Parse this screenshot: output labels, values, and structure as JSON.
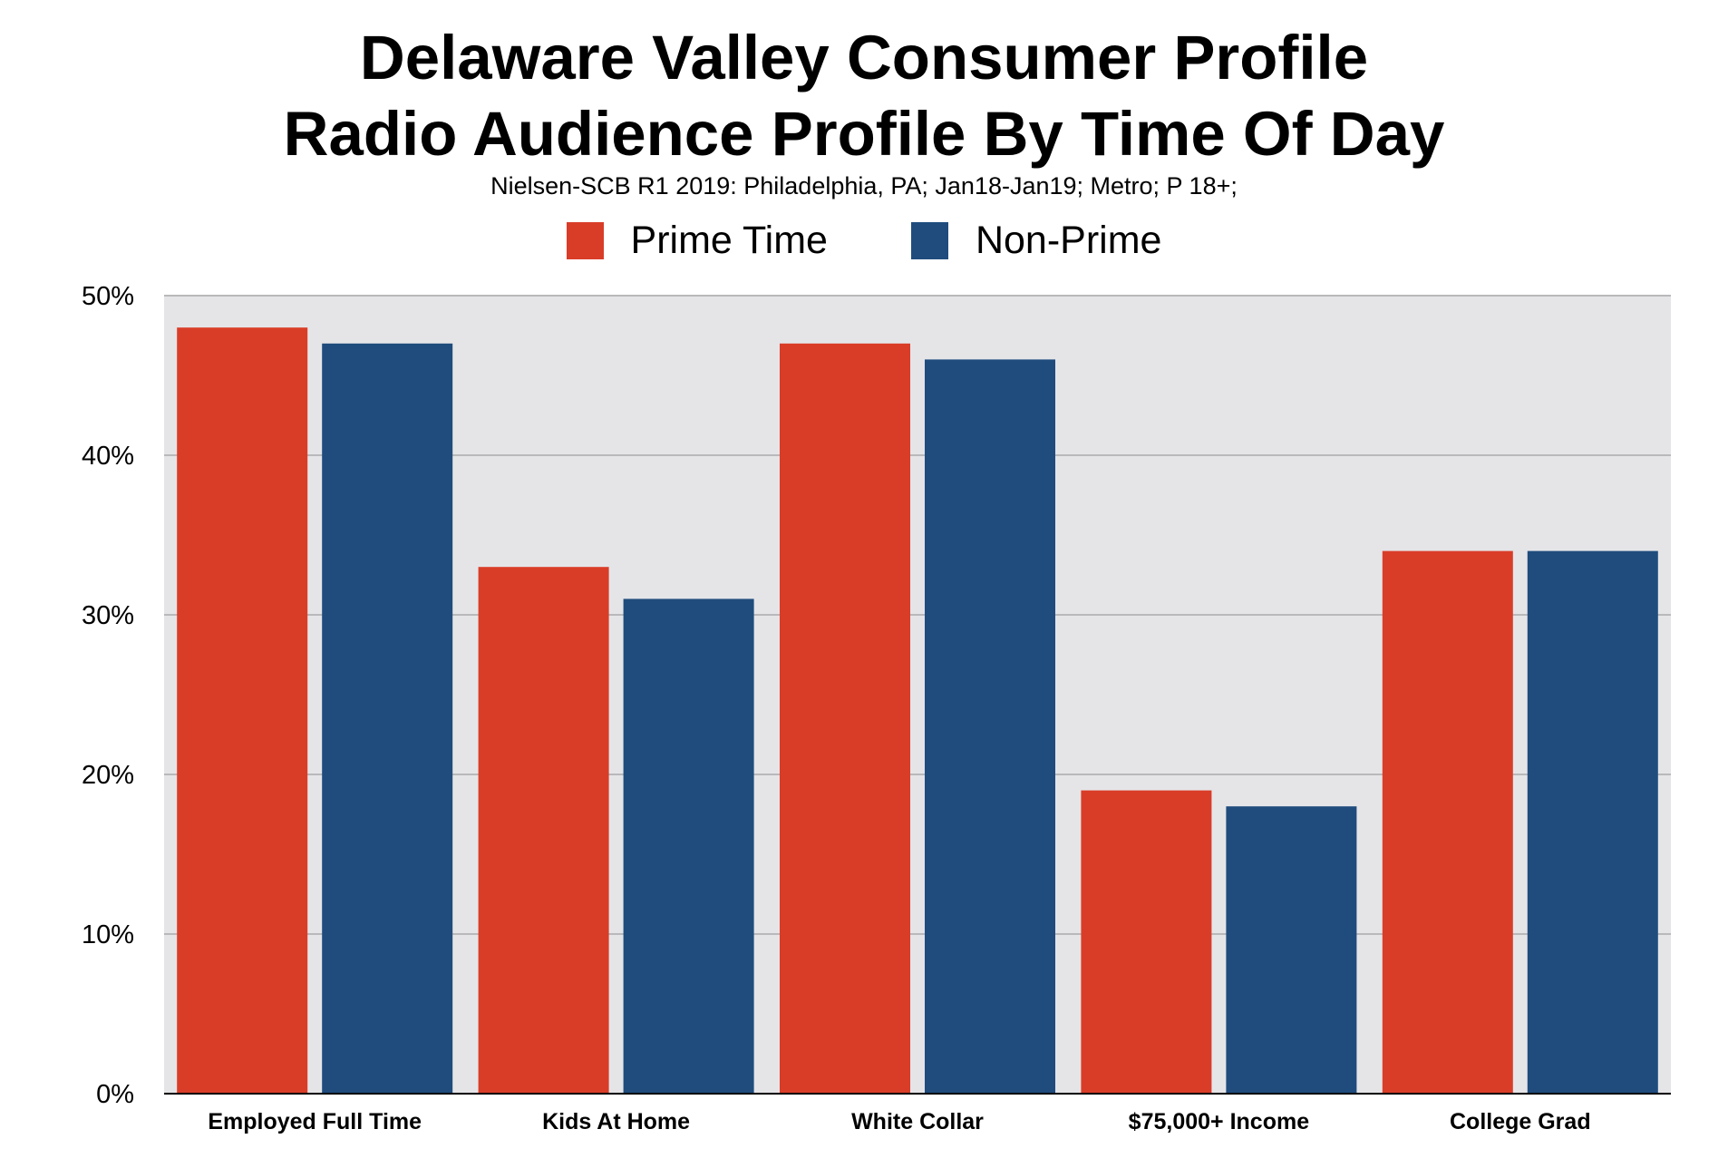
{
  "chart_data": {
    "type": "bar",
    "title": [
      "Delaware Valley Consumer Profile",
      "Radio Audience Profile By Time Of Day"
    ],
    "subtitle": "Nielsen-SCB R1 2019: Philadelphia, PA; Jan18-Jan19; Metro; P 18+;",
    "categories": [
      "Employed Full Time",
      "Kids At Home",
      "White Collar",
      "$75,000+ Income",
      "College Grad"
    ],
    "series": [
      {
        "name": "Prime Time",
        "color": "#d93d28",
        "values": [
          48,
          33,
          47,
          19,
          34
        ]
      },
      {
        "name": "Non-Prime",
        "color": "#1f4c7d",
        "values": [
          47,
          31,
          46,
          18,
          34
        ]
      }
    ],
    "y_ticks": [
      {
        "value": 0,
        "label": "0%"
      },
      {
        "value": 10,
        "label": "10%"
      },
      {
        "value": 20,
        "label": "20%"
      },
      {
        "value": 30,
        "label": "30%"
      },
      {
        "value": 40,
        "label": "40%"
      },
      {
        "value": 50,
        "label": "50%"
      }
    ],
    "ylim": [
      0,
      50
    ],
    "xlabel": "",
    "ylabel": "",
    "grid": true,
    "legend_position": "top-center",
    "plot_background": "#e5e5e8",
    "grid_color": "#b9b9bb"
  }
}
